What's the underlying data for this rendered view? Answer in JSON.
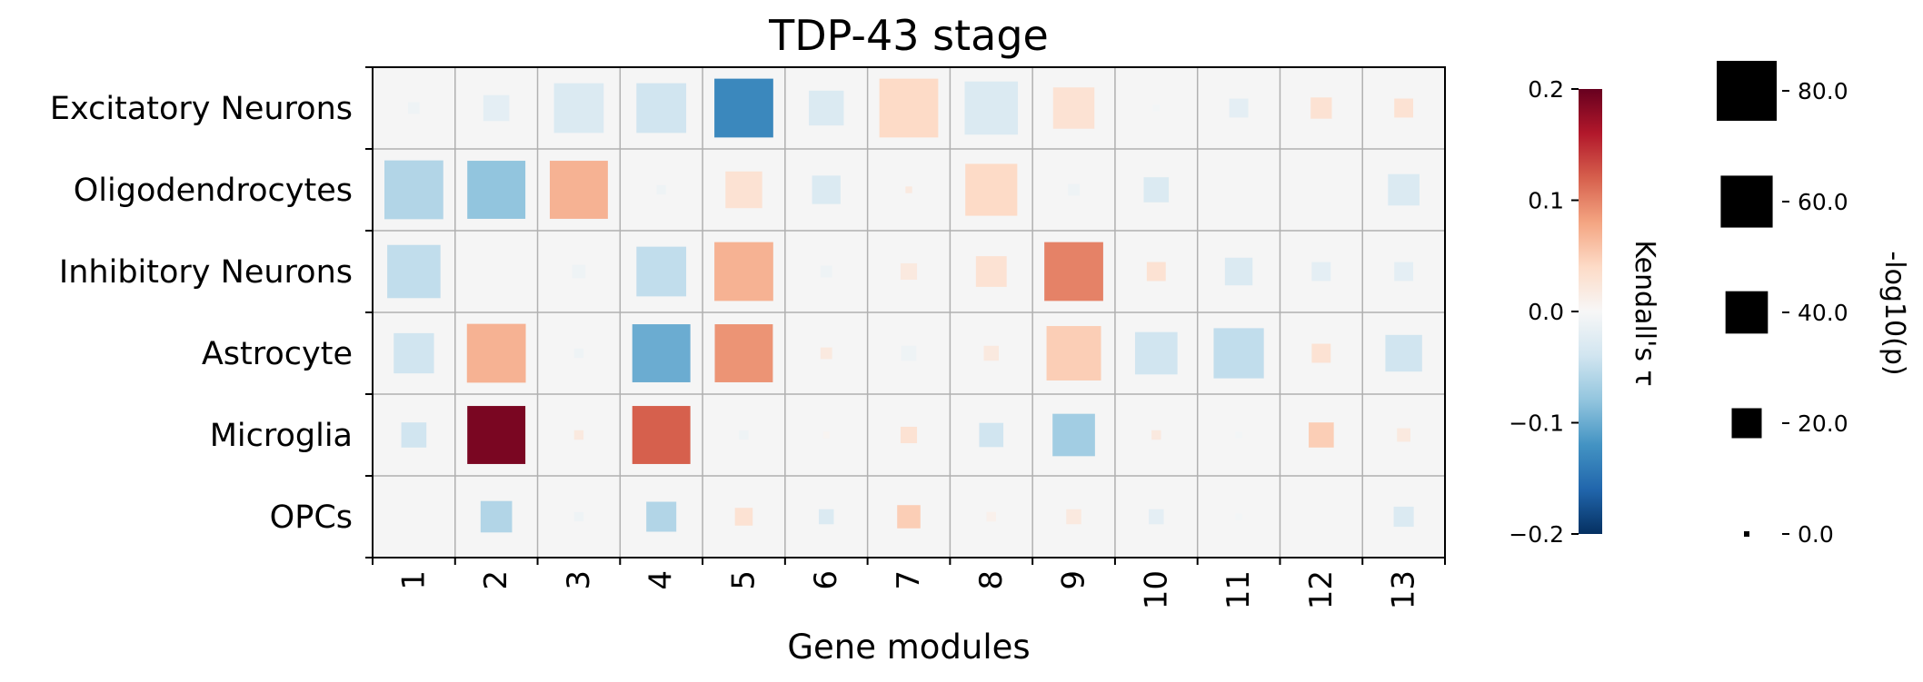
{
  "chart_data": {
    "type": "heatmap",
    "title": "TDP-43 stage",
    "xlabel": "Gene modules",
    "ylabel": "",
    "x_categories": [
      "1",
      "2",
      "3",
      "4",
      "5",
      "6",
      "7",
      "8",
      "9",
      "10",
      "11",
      "12",
      "13"
    ],
    "y_categories": [
      "Excitatory Neurons",
      "Oligodendrocytes",
      "Inhibitory Neurons",
      "Astrocyte",
      "Microglia",
      "OPCs"
    ],
    "tau": [
      [
        -0.01,
        -0.02,
        -0.03,
        -0.04,
        -0.13,
        -0.03,
        0.04,
        -0.03,
        0.03,
        -0.005,
        -0.02,
        0.03,
        0.03
      ],
      [
        -0.06,
        -0.08,
        0.07,
        -0.01,
        0.03,
        -0.03,
        0.02,
        0.04,
        -0.01,
        -0.03,
        0.0,
        0.0,
        -0.03
      ],
      [
        -0.05,
        0.0,
        -0.01,
        -0.05,
        0.07,
        -0.01,
        0.02,
        0.03,
        0.1,
        0.03,
        -0.03,
        -0.02,
        -0.02
      ],
      [
        -0.04,
        0.07,
        -0.01,
        -0.1,
        0.09,
        0.02,
        -0.01,
        0.02,
        0.05,
        -0.04,
        -0.05,
        0.03,
        -0.04
      ],
      [
        -0.04,
        0.19,
        0.02,
        0.12,
        -0.01,
        0.005,
        0.03,
        -0.04,
        -0.07,
        0.02,
        -0.005,
        0.05,
        0.02
      ],
      [
        0.0,
        -0.06,
        -0.01,
        -0.06,
        0.03,
        -0.03,
        0.05,
        0.01,
        0.02,
        -0.02,
        -0.005,
        0.0,
        -0.03
      ]
    ],
    "neg_log10_p": [
      [
        3,
        15,
        55,
        55,
        77,
        27,
        77,
        63,
        38,
        1,
        8,
        10,
        8
      ],
      [
        77,
        75,
        75,
        2,
        30,
        18,
        1,
        60,
        3,
        14,
        0,
        0,
        22
      ],
      [
        63,
        0,
        4,
        55,
        77,
        3,
        6,
        21,
        77,
        8,
        17,
        8,
        8
      ],
      [
        36,
        77,
        2,
        75,
        75,
        3,
        5,
        5,
        66,
        40,
        56,
        8,
        30
      ],
      [
        14,
        75,
        2,
        75,
        2,
        1,
        6,
        13,
        40,
        2,
        1,
        14,
        4
      ],
      [
        0,
        22,
        2,
        20,
        7,
        5,
        12,
        2,
        5,
        5,
        1,
        0,
        9
      ]
    ],
    "colorbar": {
      "label": "Kendall's τ",
      "range": [
        -0.2,
        0.2
      ],
      "ticks": [
        "0.2",
        "0.1",
        "0.0",
        "−0.1",
        "−0.2"
      ],
      "colormap": "RdBu_r"
    },
    "size_legend": {
      "label": "-log10(p)",
      "values": [
        80,
        60,
        40,
        20,
        0
      ],
      "labels": [
        "80.0",
        "60.0",
        "40.0",
        "20.0",
        "0.0"
      ]
    },
    "grid": true,
    "colors": {
      "cell_background": "#f5f5f5",
      "grid": "#b0b0b0",
      "size_marker": "#000000"
    }
  }
}
